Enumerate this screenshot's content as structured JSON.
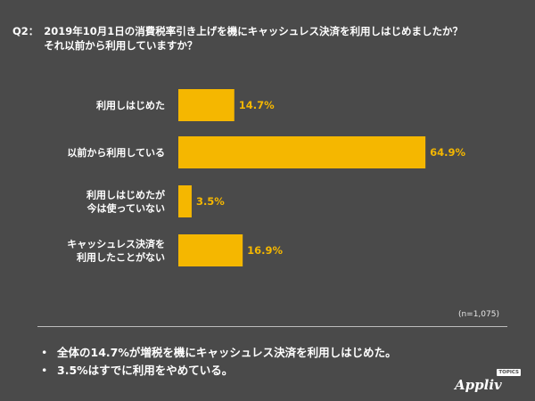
{
  "question": {
    "number": "Q2：",
    "lines": [
      "2019年10月1日の消費税率引き上げを機にキャッシュレス決済を利用しはじめましたか？",
      "それ以前から利用していますか？"
    ]
  },
  "chart_data": {
    "type": "bar",
    "orientation": "horizontal",
    "categories": [
      [
        "利用しはじめた"
      ],
      [
        "以前から利用している"
      ],
      [
        "利用しはじめたが",
        "今は使っていない"
      ],
      [
        "キャッシュレス決済を",
        "利用したことがない"
      ]
    ],
    "values": [
      14.7,
      64.9,
      3.5,
      16.9
    ],
    "value_labels": [
      "14.7%",
      "64.9%",
      "3.5%",
      "16.9%"
    ],
    "unit": "%",
    "xlim": [
      0,
      100
    ],
    "bar_color": "#f5b700",
    "grid": false
  },
  "note": "(n=1,075)",
  "summary": [
    "全体の14.7%が増税を機にキャッシュレス決済を利用しはじめた。",
    "3.5%はすでに利用をやめている。"
  ],
  "bullet": "•",
  "logo": {
    "text": "Appliv",
    "badge": "TOPICS"
  },
  "colors": {
    "background": "#4a4a4a",
    "accent": "#f5b700",
    "text": "#ffffff"
  }
}
